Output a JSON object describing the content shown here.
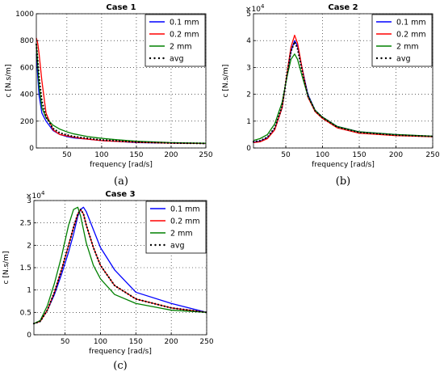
{
  "colors": {
    "s01": "#0000ff",
    "s02": "#ff0000",
    "s2": "#008000",
    "avg": "#000000"
  },
  "chart_data": [
    {
      "type": "line",
      "panel_label": "(a)",
      "title": "Case 1",
      "xlabel": "frequency [rad/s]",
      "ylabel": "c [N.s/m]",
      "xlim": [
        6,
        250
      ],
      "ylim": [
        0,
        1000
      ],
      "xticks": [
        50,
        100,
        150,
        200,
        250
      ],
      "yticks": [
        0,
        200,
        400,
        600,
        800,
        1000
      ],
      "y_multiplier": "",
      "grid": true,
      "legend_position": "top-right",
      "series": [
        {
          "name": "0.1 mm",
          "color": "#0000ff",
          "style": "solid",
          "x": [
            6,
            8,
            10,
            14,
            20,
            30,
            40,
            50,
            60,
            70,
            80,
            90,
            100,
            120,
            150,
            200,
            250
          ],
          "y": [
            700,
            540,
            390,
            260,
            200,
            130,
            100,
            85,
            75,
            70,
            66,
            60,
            55,
            50,
            40,
            36,
            33
          ]
        },
        {
          "name": "0.2 mm",
          "color": "#ff0000",
          "style": "solid",
          "x": [
            6,
            8,
            10,
            14,
            20,
            30,
            40,
            50,
            60,
            70,
            80,
            90,
            100,
            120,
            150,
            200,
            250
          ],
          "y": [
            820,
            780,
            700,
            500,
            260,
            135,
            100,
            90,
            80,
            72,
            66,
            60,
            55,
            50,
            42,
            36,
            33
          ]
        },
        {
          "name": "2 mm",
          "color": "#008000",
          "style": "solid",
          "x": [
            6,
            8,
            10,
            14,
            20,
            30,
            40,
            50,
            60,
            70,
            80,
            90,
            100,
            120,
            150,
            200,
            250
          ],
          "y": [
            780,
            620,
            460,
            300,
            225,
            170,
            140,
            120,
            105,
            95,
            85,
            78,
            72,
            62,
            50,
            40,
            35
          ]
        },
        {
          "name": "avg",
          "color": "#000000",
          "style": "dots",
          "x": [
            6,
            8,
            10,
            14,
            20,
            30,
            40,
            50,
            60,
            70,
            80,
            90,
            100,
            120,
            150,
            200,
            250
          ],
          "y": [
            770,
            650,
            520,
            350,
            230,
            145,
            112,
            97,
            85,
            78,
            72,
            65,
            60,
            54,
            44,
            37,
            34
          ]
        }
      ]
    },
    {
      "type": "line",
      "panel_label": "(b)",
      "title": "Case 2",
      "xlabel": "frequency [rad/s]",
      "ylabel": "c [N.s/m]",
      "xlim": [
        6,
        250
      ],
      "ylim": [
        0,
        50000
      ],
      "xticks": [
        50,
        100,
        150,
        200,
        250
      ],
      "yticks": [
        0,
        10000,
        20000,
        30000,
        40000,
        50000
      ],
      "ytick_labels": [
        "0",
        "1",
        "2",
        "3",
        "4",
        "5"
      ],
      "y_multiplier": "×10",
      "y_multiplier_exp": "4",
      "grid": true,
      "legend_position": "top-right",
      "series": [
        {
          "name": "0.1 mm",
          "color": "#0000ff",
          "style": "solid",
          "x": [
            6,
            15,
            25,
            35,
            45,
            52,
            57,
            62,
            66,
            72,
            80,
            90,
            100,
            120,
            150,
            200,
            250
          ],
          "y": [
            2200,
            2500,
            3800,
            7000,
            15000,
            28000,
            36000,
            40000,
            38000,
            30000,
            20000,
            14000,
            11500,
            8000,
            6000,
            5000,
            4300
          ]
        },
        {
          "name": "0.2 mm",
          "color": "#ff0000",
          "style": "solid",
          "x": [
            6,
            15,
            25,
            35,
            45,
            52,
            57,
            62,
            66,
            72,
            80,
            90,
            100,
            120,
            150,
            200,
            250
          ],
          "y": [
            2000,
            2300,
            3500,
            6800,
            15000,
            28500,
            37500,
            42000,
            39000,
            30000,
            19000,
            13500,
            11000,
            7500,
            5500,
            4600,
            4200
          ]
        },
        {
          "name": "2 mm",
          "color": "#008000",
          "style": "solid",
          "x": [
            6,
            15,
            25,
            35,
            45,
            52,
            57,
            62,
            66,
            72,
            80,
            90,
            100,
            120,
            150,
            200,
            250
          ],
          "y": [
            2800,
            3500,
            5000,
            9000,
            17000,
            27000,
            33000,
            35000,
            33000,
            27000,
            19500,
            14000,
            11500,
            8000,
            6000,
            5000,
            4400
          ]
        },
        {
          "name": "avg",
          "color": "#000000",
          "style": "dots",
          "x": [
            6,
            15,
            25,
            35,
            45,
            52,
            57,
            62,
            66,
            72,
            80,
            90,
            100,
            120,
            150,
            200,
            250
          ],
          "y": [
            2300,
            2700,
            4000,
            7500,
            15500,
            28000,
            36000,
            39500,
            37000,
            29000,
            19500,
            13800,
            11300,
            7800,
            5800,
            4800,
            4300
          ]
        }
      ]
    },
    {
      "type": "line",
      "panel_label": "(c)",
      "title": "Case 3",
      "xlabel": "frequency [rad/s]",
      "ylabel": "c [N.s/m]",
      "xlim": [
        6,
        250
      ],
      "ylim": [
        0,
        30000
      ],
      "xticks": [
        50,
        100,
        150,
        200,
        250
      ],
      "yticks": [
        0,
        5000,
        10000,
        15000,
        20000,
        25000,
        30000
      ],
      "ytick_labels": [
        "0",
        "0.5",
        "1",
        "1.5",
        "2",
        "2.5",
        "3"
      ],
      "y_multiplier": "×10",
      "y_multiplier_exp": "4",
      "grid": true,
      "legend_position": "top-right",
      "series": [
        {
          "name": "0.1 mm",
          "color": "#0000ff",
          "style": "solid",
          "x": [
            6,
            15,
            25,
            35,
            45,
            55,
            62,
            68,
            72,
            76,
            80,
            90,
            100,
            120,
            150,
            200,
            250
          ],
          "y": [
            2500,
            3000,
            5500,
            9000,
            13500,
            18500,
            22500,
            26500,
            28000,
            28500,
            27500,
            23500,
            19500,
            14500,
            9500,
            7000,
            5000
          ]
        },
        {
          "name": "0.2 mm",
          "color": "#ff0000",
          "style": "solid",
          "x": [
            6,
            15,
            25,
            35,
            45,
            55,
            62,
            68,
            72,
            76,
            80,
            90,
            100,
            120,
            150,
            200,
            250
          ],
          "y": [
            2500,
            3000,
            5500,
            9500,
            14500,
            20000,
            24000,
            27000,
            28000,
            27000,
            24500,
            19500,
            15500,
            11000,
            8000,
            6000,
            5000
          ]
        },
        {
          "name": "2 mm",
          "color": "#008000",
          "style": "solid",
          "x": [
            6,
            15,
            25,
            35,
            45,
            55,
            62,
            68,
            72,
            76,
            80,
            90,
            100,
            120,
            150,
            200,
            250
          ],
          "y": [
            2500,
            3200,
            6500,
            11500,
            17500,
            24500,
            28000,
            28500,
            26500,
            23500,
            20500,
            15500,
            12500,
            9000,
            7000,
            5500,
            5000
          ]
        },
        {
          "name": "avg",
          "color": "#000000",
          "style": "dots",
          "x": [
            6,
            15,
            25,
            35,
            45,
            55,
            62,
            68,
            72,
            76,
            80,
            90,
            100,
            120,
            150,
            200,
            250
          ],
          "y": [
            2500,
            3000,
            5500,
            9500,
            14500,
            20000,
            24000,
            27000,
            28000,
            27000,
            24500,
            19500,
            15500,
            11000,
            8000,
            6000,
            5000
          ]
        }
      ]
    }
  ]
}
